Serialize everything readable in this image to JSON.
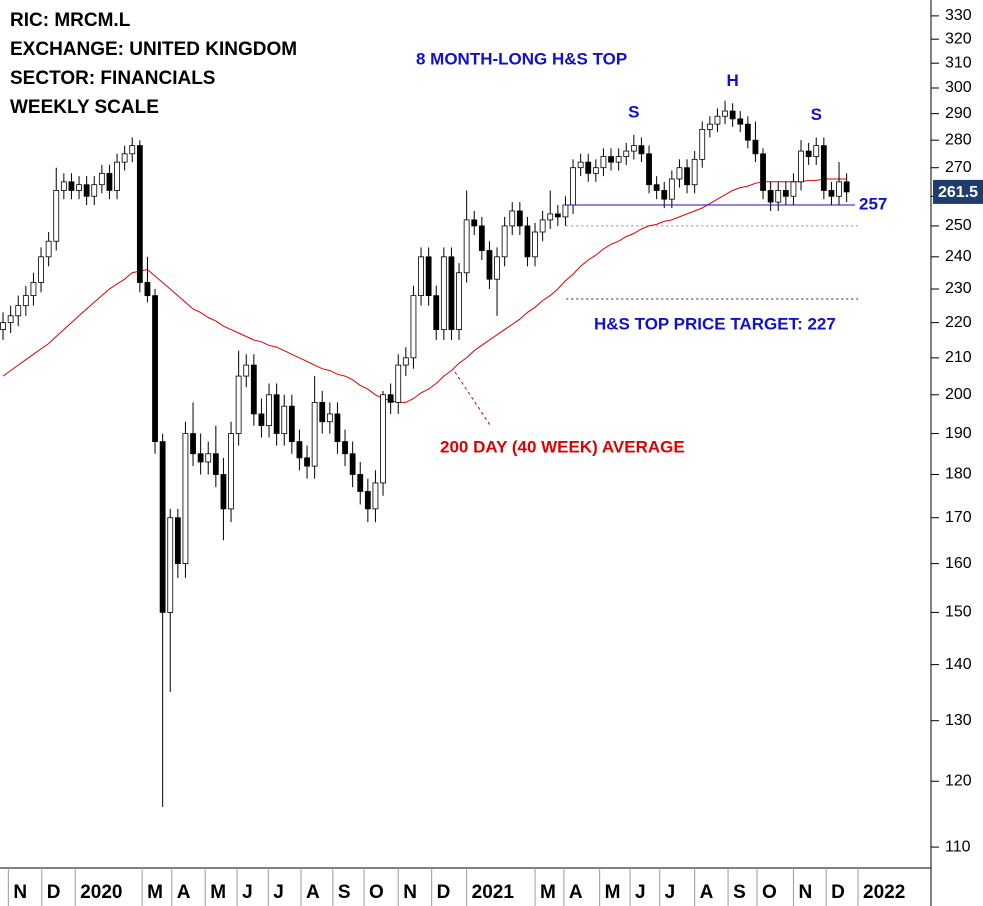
{
  "chart_data": {
    "type": "candlestick",
    "title_lines": [
      "RIC: MRCM.L",
      "EXCHANGE: UNITED KINGDOM",
      "SECTOR: FINANCIALS",
      "WEEKLY SCALE"
    ],
    "pattern_title": "8 MONTH-LONG H&S TOP",
    "pattern_points": [
      {
        "label": "S",
        "x": 83
      },
      {
        "label": "H",
        "x": 96
      },
      {
        "label": "S",
        "x": 107
      }
    ],
    "neckline": 257,
    "reference_line": 250,
    "target": {
      "value": 227,
      "label": "H&S TOP PRICE TARGET: 227"
    },
    "log_scale": true,
    "ylim": [
      107,
      337
    ],
    "yticks": [
      110,
      120,
      130,
      140,
      150,
      160,
      170,
      180,
      190,
      200,
      210,
      220,
      230,
      240,
      250,
      260,
      270,
      280,
      290,
      300,
      310,
      320,
      330
    ],
    "xlim": [
      -0.4,
      122.1
    ],
    "xticks": [
      {
        "value": 0.7,
        "label": "N"
      },
      {
        "value": 5.1,
        "label": "D"
      },
      {
        "value": 9.5,
        "label": "2020"
      },
      {
        "value": 18.3,
        "label": "M"
      },
      {
        "value": 22.2,
        "label": "A"
      },
      {
        "value": 26.6,
        "label": "M"
      },
      {
        "value": 30.8,
        "label": "J"
      },
      {
        "value": 34.9,
        "label": "J"
      },
      {
        "value": 39.2,
        "label": "A"
      },
      {
        "value": 43.4,
        "label": "S"
      },
      {
        "value": 47.5,
        "label": "O"
      },
      {
        "value": 52,
        "label": "N"
      },
      {
        "value": 56.4,
        "label": "D"
      },
      {
        "value": 61,
        "label": "2021"
      },
      {
        "value": 70,
        "label": "M"
      },
      {
        "value": 73.8,
        "label": "A"
      },
      {
        "value": 78.5,
        "label": "M"
      },
      {
        "value": 82.5,
        "label": "J"
      },
      {
        "value": 86.4,
        "label": "J"
      },
      {
        "value": 91,
        "label": "A"
      },
      {
        "value": 95.4,
        "label": "S"
      },
      {
        "value": 99.2,
        "label": "O"
      },
      {
        "value": 104,
        "label": "N"
      },
      {
        "value": 108.3,
        "label": "D"
      },
      {
        "value": 112.5,
        "label": "2022"
      }
    ],
    "candles": {
      "up_color": "#ffffff",
      "down_color": "#000000",
      "open": [
        218,
        220,
        222,
        225,
        228,
        232,
        240,
        245,
        262,
        265,
        262,
        264,
        260,
        264,
        268,
        262,
        272,
        275,
        278,
        232,
        228,
        188,
        150,
        170,
        160,
        190,
        185,
        183,
        185,
        180,
        172,
        190,
        205,
        208,
        195,
        192,
        200,
        190,
        197,
        188,
        184,
        182,
        198,
        193,
        195,
        188,
        185,
        180,
        176,
        172,
        178,
        200,
        198,
        208,
        210,
        228,
        240,
        228,
        218,
        240,
        218,
        235,
        252,
        250,
        242,
        233,
        240,
        250,
        255,
        250,
        240,
        248,
        252,
        254,
        253,
        257,
        270,
        272,
        268,
        270,
        274,
        272,
        274,
        276,
        278,
        275,
        264,
        262,
        259,
        266,
        270,
        264,
        273,
        284,
        286,
        289,
        291,
        288,
        286,
        280,
        275,
        262,
        258,
        262,
        260,
        265,
        276,
        274,
        278,
        262,
        260,
        265
      ],
      "high": [
        223,
        225,
        228,
        231,
        235,
        243,
        248,
        270,
        268,
        268,
        267,
        267,
        267,
        271,
        271,
        275,
        278,
        281,
        280,
        240,
        230,
        190,
        172,
        172,
        193,
        198,
        190,
        188,
        192,
        184,
        193,
        212,
        211,
        211,
        199,
        203,
        203,
        200,
        200,
        191,
        187,
        205,
        201,
        198,
        198,
        191,
        188,
        183,
        179,
        181,
        201,
        203,
        211,
        213,
        231,
        243,
        243,
        231,
        243,
        243,
        238,
        262,
        255,
        253,
        245,
        243,
        253,
        258,
        258,
        253,
        251,
        255,
        262,
        257,
        260,
        273,
        275,
        275,
        273,
        277,
        277,
        277,
        279,
        282,
        281,
        278,
        267,
        265,
        269,
        273,
        273,
        276,
        287,
        289,
        292,
        295,
        294,
        291,
        289,
        287,
        277,
        265,
        265,
        265,
        268,
        280,
        279,
        281,
        281,
        265,
        272,
        268
      ],
      "low": [
        215,
        217,
        219,
        222,
        225,
        229,
        237,
        242,
        259,
        259,
        259,
        257,
        257,
        261,
        259,
        259,
        269,
        272,
        229,
        226,
        185,
        116,
        135,
        157,
        157,
        182,
        180,
        180,
        177,
        165,
        169,
        187,
        202,
        192,
        189,
        189,
        187,
        187,
        185,
        181,
        179,
        179,
        190,
        190,
        185,
        182,
        177,
        173,
        169,
        169,
        175,
        195,
        195,
        205,
        207,
        225,
        225,
        215,
        215,
        215,
        215,
        232,
        247,
        239,
        230,
        222,
        237,
        247,
        247,
        237,
        237,
        245,
        249,
        250,
        250,
        254,
        267,
        265,
        265,
        267,
        269,
        269,
        271,
        273,
        272,
        261,
        259,
        256,
        256,
        263,
        261,
        261,
        270,
        281,
        283,
        286,
        285,
        283,
        277,
        272,
        259,
        255,
        255,
        257,
        257,
        262,
        271,
        271,
        259,
        257,
        257,
        258
      ],
      "close": [
        220,
        222,
        225,
        228,
        232,
        240,
        245,
        262,
        265,
        262,
        264,
        260,
        264,
        268,
        262,
        272,
        275,
        278,
        232,
        228,
        188,
        150,
        170,
        160,
        190,
        185,
        183,
        185,
        180,
        172,
        190,
        205,
        208,
        195,
        192,
        200,
        190,
        197,
        188,
        184,
        182,
        198,
        193,
        195,
        188,
        185,
        180,
        176,
        172,
        178,
        200,
        198,
        208,
        210,
        228,
        240,
        228,
        218,
        240,
        218,
        235,
        252,
        250,
        242,
        233,
        240,
        250,
        255,
        250,
        240,
        248,
        252,
        254,
        253,
        257,
        270,
        272,
        268,
        270,
        274,
        272,
        274,
        276,
        278,
        275,
        264,
        262,
        259,
        266,
        270,
        264,
        273,
        284,
        286,
        289,
        291,
        288,
        286,
        280,
        275,
        262,
        258,
        262,
        260,
        265,
        276,
        274,
        278,
        262,
        260,
        265,
        261.5
      ]
    },
    "moving_average": {
      "label": "200 DAY (40 WEEK) AVERAGE",
      "color": "#e00000",
      "values": [
        205,
        206.5,
        208,
        209.5,
        211,
        212.5,
        214,
        216,
        218,
        220,
        222,
        224,
        226,
        228,
        230,
        231.5,
        233,
        235,
        235.5,
        236,
        234,
        232,
        230,
        228,
        226,
        224,
        223,
        221.5,
        220.5,
        219,
        218,
        217,
        216,
        215,
        214.5,
        213.5,
        213,
        212,
        211,
        210,
        209,
        208,
        207,
        206.5,
        205.5,
        205,
        204,
        202.5,
        201.5,
        200,
        199,
        198.5,
        198,
        198,
        199,
        200.5,
        201.5,
        203,
        205,
        206.5,
        208.5,
        210,
        212,
        213.5,
        215,
        216.5,
        218,
        219.5,
        221,
        223,
        224.5,
        226.5,
        228,
        230,
        232.5,
        234.5,
        237,
        239,
        240.5,
        242.5,
        244,
        245,
        246.5,
        247.5,
        249,
        250,
        250.5,
        251.5,
        252,
        253,
        254,
        255,
        256,
        257.5,
        259,
        260.5,
        262,
        263,
        263.5,
        264.5,
        265,
        265,
        265,
        265,
        265,
        265,
        265.5,
        265.5,
        266,
        266,
        266,
        266
      ]
    }
  }
}
